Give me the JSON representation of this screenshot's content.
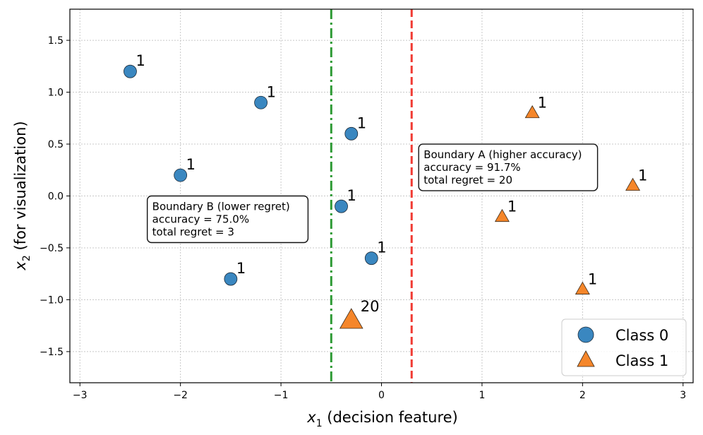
{
  "chart_data": {
    "type": "scatter",
    "xlabel_var": "x",
    "xlabel_sub": "1",
    "xlabel_rest": " (decision feature)",
    "ylabel_var": "x",
    "ylabel_sub": "2",
    "ylabel_rest": " (for visualization)",
    "xlim": [
      -3.1,
      3.1
    ],
    "ylim": [
      -1.8,
      1.8
    ],
    "x_ticks": [
      -3,
      -2,
      -1,
      0,
      1,
      2,
      3
    ],
    "x_tick_labels": [
      "−3",
      "−2",
      "−1",
      "0",
      "1",
      "2",
      "3"
    ],
    "y_ticks": [
      1.5,
      1.0,
      0.5,
      0.0,
      -0.5,
      -1.0,
      -1.5
    ],
    "y_tick_labels": [
      "1.5",
      "1.0",
      "0.5",
      "0.0",
      "−0.5",
      "−1.0",
      "−1.5"
    ],
    "grid": true,
    "series": [
      {
        "name": "Class 0",
        "marker": "circle",
        "color": "#3a87c0",
        "points": [
          {
            "x": -2.5,
            "y": 1.2,
            "label": "1",
            "weight": 1
          },
          {
            "x": -1.2,
            "y": 0.9,
            "label": "1",
            "weight": 1
          },
          {
            "x": -0.3,
            "y": 0.6,
            "label": "1",
            "weight": 1
          },
          {
            "x": -2.0,
            "y": 0.2,
            "label": "1",
            "weight": 1
          },
          {
            "x": -0.4,
            "y": -0.1,
            "label": "1",
            "weight": 1
          },
          {
            "x": -0.1,
            "y": -0.6,
            "label": "1",
            "weight": 1
          },
          {
            "x": -1.5,
            "y": -0.8,
            "label": "1",
            "weight": 1
          }
        ]
      },
      {
        "name": "Class 1",
        "marker": "triangle",
        "color": "#f5862a",
        "points": [
          {
            "x": 1.5,
            "y": 0.8,
            "label": "1",
            "weight": 1
          },
          {
            "x": 2.5,
            "y": 0.1,
            "label": "1",
            "weight": 1
          },
          {
            "x": 1.2,
            "y": -0.2,
            "label": "1",
            "weight": 1
          },
          {
            "x": 2.0,
            "y": -0.9,
            "label": "1",
            "weight": 1
          },
          {
            "x": -0.3,
            "y": -1.2,
            "label": "20",
            "weight": 20
          }
        ]
      }
    ],
    "boundaries": [
      {
        "name": "Boundary A",
        "x": 0.3,
        "color": "#f03a32",
        "style": "dashed"
      },
      {
        "name": "Boundary B",
        "x": -0.5,
        "color": "#2e9a35",
        "style": "dashdot"
      }
    ],
    "annotations": [
      {
        "id": "boundary-a",
        "lines": [
          "Boundary A (higher accuracy)",
          "accuracy = 91.7%",
          "total regret = 20"
        ],
        "anchor_x": 0.37,
        "anchor_y": 0.5
      },
      {
        "id": "boundary-b",
        "lines": [
          "Boundary B (lower regret)",
          "accuracy = 75.0%",
          "total regret = 3"
        ],
        "anchor_x": -2.33,
        "anchor_y": -0.0
      }
    ],
    "legend": {
      "position": "bottom-right",
      "entries": [
        "Class 0",
        "Class 1"
      ]
    }
  }
}
